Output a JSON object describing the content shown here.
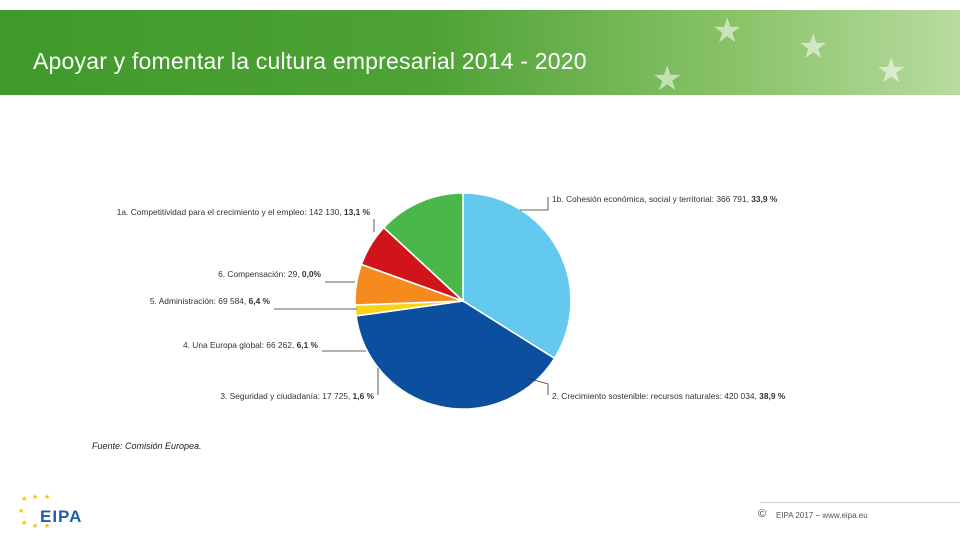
{
  "title": "Apoyar y fomentar la cultura empresarial 2014 - 2020",
  "source": "Fuente: Comisión Europea.",
  "footer": {
    "copyright": "©",
    "text": "EIPA 2017 − www.eipa.eu",
    "logo": "EIPA"
  },
  "chart_data": {
    "type": "pie",
    "slices": [
      {
        "label": "1b. Cohesión económica, social y territorial: 366 791,",
        "pct_label": "33,9 %",
        "value": 33.9,
        "color": "#63c9ef"
      },
      {
        "label": "2. Crecimiento sostenible: recursos naturales: 420 034,",
        "pct_label": "38,9 %",
        "value": 38.9,
        "color": "#0b4f9e"
      },
      {
        "label": "3. Seguridad y ciudadanía: 17 725,",
        "pct_label": "1,6 %",
        "value": 1.6,
        "color": "#f7d417"
      },
      {
        "label": "4. Una Europa global: 66 262,",
        "pct_label": "6,1 %",
        "value": 6.1,
        "color": "#f58a1f"
      },
      {
        "label": "5. Administración: 69 584,",
        "pct_label": "6,4 %",
        "value": 6.4,
        "color": "#d1131b"
      },
      {
        "label": "6. Compensación: 29,",
        "pct_label": "0,0%",
        "value": 0.0,
        "color": "#8b3a8f"
      },
      {
        "label": "1a. Competitividad para el crecimiento y el empleo: 142 130,",
        "pct_label": "13,1 %",
        "value": 13.1,
        "color": "#4ab74a"
      }
    ]
  }
}
